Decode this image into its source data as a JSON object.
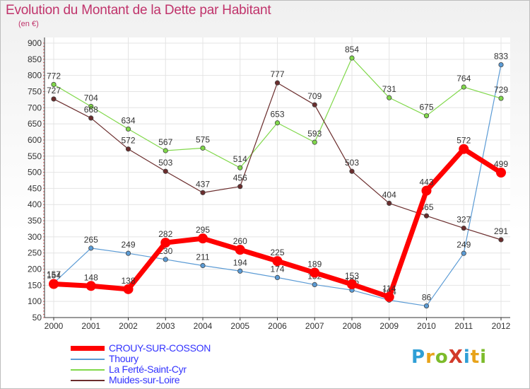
{
  "title": "Evolution du Montant de la Dette par Habitant",
  "subtitle": "(en €)",
  "logo": {
    "text": "ProXiti",
    "colors": [
      "#2f9fd6",
      "#e8a31a",
      "#7cbb2a",
      "#d23a2a",
      "#2f9fd6",
      "#e8a31a",
      "#7cbb2a"
    ]
  },
  "colors": {
    "title": "#c0336b",
    "axis": "#333333",
    "grid": "#e4e4e4",
    "label": "#333333"
  },
  "chart_data": {
    "type": "line",
    "title": "Evolution du Montant de la Dette par Habitant",
    "ylabel": "(en €)",
    "xlabel": "",
    "x": [
      "2000",
      "2001",
      "2002",
      "2003",
      "2004",
      "2005",
      "2006",
      "2007",
      "2008",
      "2009",
      "2010",
      "2011",
      "2012"
    ],
    "ylim": [
      50,
      900
    ],
    "yticks": [
      50,
      100,
      150,
      200,
      250,
      300,
      350,
      400,
      450,
      500,
      550,
      600,
      650,
      700,
      750,
      800,
      850,
      900
    ],
    "grid": true,
    "legend_position": "bottom-left",
    "series": [
      {
        "name": "CROUY-SUR-COSSON",
        "color": "#ff0000",
        "text_color": "#3333ff",
        "width": 7,
        "marker": 7,
        "values": [
          154,
          148,
          138,
          282,
          295,
          260,
          225,
          189,
          153,
          114,
          443,
          572,
          499
        ]
      },
      {
        "name": "Thoury",
        "color": "#5b9bd5",
        "text_color": "#3333ff",
        "width": 1.2,
        "marker": 3.2,
        "values": [
          157,
          265,
          249,
          230,
          211,
          194,
          174,
          152,
          135,
          104,
          86,
          249,
          833
        ]
      },
      {
        "name": "La Ferté-Saint-Cyr",
        "color": "#80d84a",
        "text_color": "#3333ff",
        "width": 1.2,
        "marker": 3.2,
        "values": [
          772,
          704,
          634,
          567,
          575,
          514,
          653,
          593,
          854,
          731,
          675,
          764,
          729
        ]
      },
      {
        "name": "Muides-sur-Loire",
        "color": "#6b2d2d",
        "text_color": "#3333ff",
        "width": 1.2,
        "marker": 3.2,
        "values": [
          727,
          668,
          572,
          503,
          437,
          456,
          777,
          709,
          503,
          404,
          365,
          327,
          291
        ]
      }
    ]
  }
}
